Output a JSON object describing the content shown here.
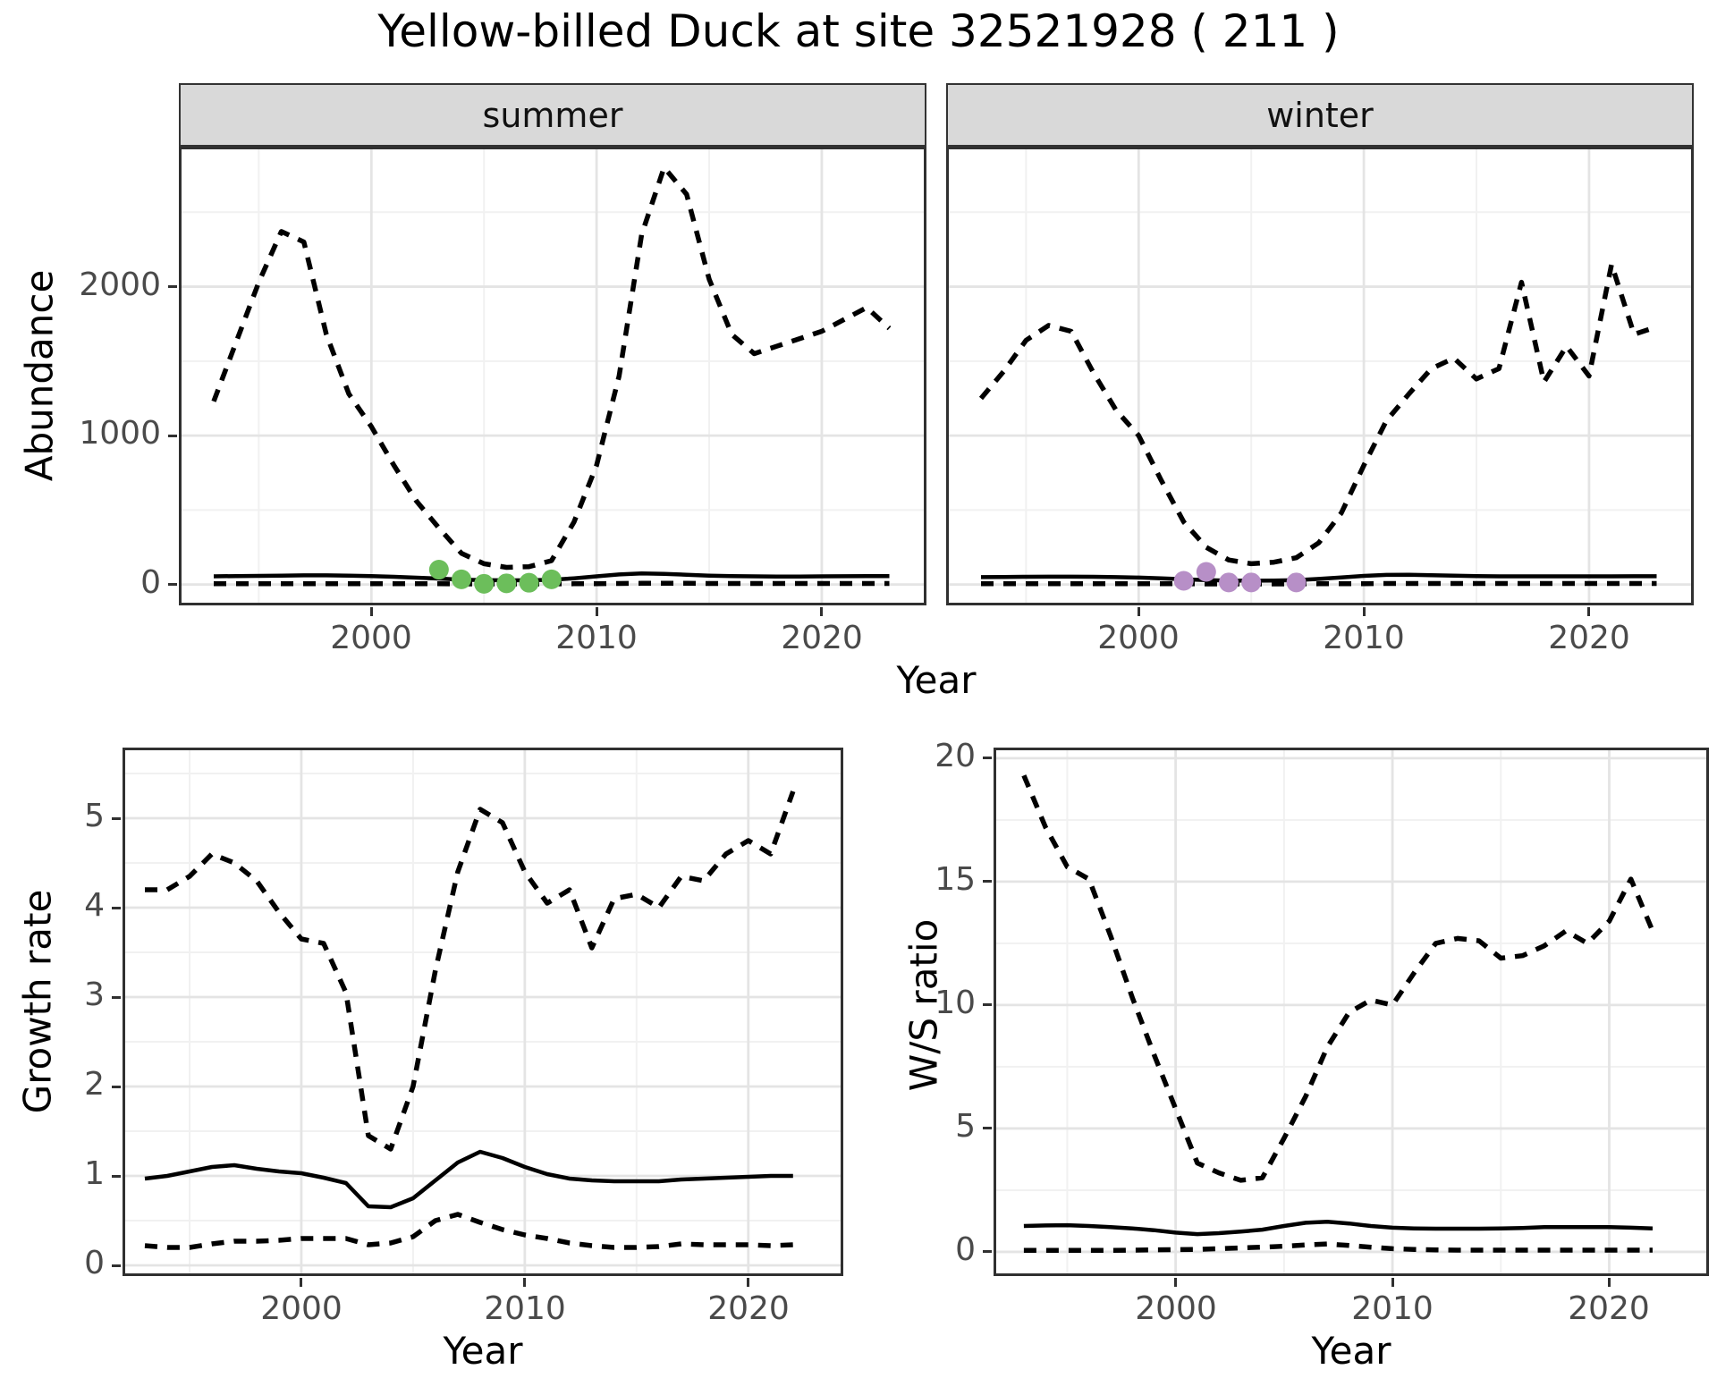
{
  "title": "Yellow-billed Duck at site 32521928 ( 211 )",
  "facets": [
    {
      "label": "summer"
    },
    {
      "label": "winter"
    }
  ],
  "top_row": {
    "ylabel": "Abundance",
    "xlabel": "Year"
  },
  "bottom_left": {
    "ylabel": "Growth rate",
    "xlabel": "Year"
  },
  "bottom_right": {
    "ylabel": "W/S ratio",
    "xlabel": "Year"
  },
  "colors": {
    "summer_points": "#6CBE5B",
    "winter_points": "#B78FC7",
    "line": "#000000",
    "grid_major": "#e4e4e4",
    "grid_minor": "#f1f1f1",
    "strip_bg": "#d9d9d9",
    "panel_border": "#303030",
    "tick_text": "#4a4a4a"
  },
  "chart_data": [
    {
      "id": "abundance-summer",
      "type": "line",
      "title": "summer",
      "xlabel": "Year",
      "ylabel": "Abundance",
      "xlim": [
        1991.45,
        2024.65
      ],
      "ylim": [
        -140,
        2940
      ],
      "xticks": [
        2000,
        2010,
        2020
      ],
      "xticks_minor": [
        1995,
        2005,
        2015,
        2025
      ],
      "yticks": [
        0,
        1000,
        2000
      ],
      "yticks_minor": [
        500,
        1500,
        2500
      ],
      "show_y_labels": true,
      "x": [
        1993,
        1994,
        1995,
        1996,
        1997,
        1998,
        1999,
        2000,
        2001,
        2002,
        2003,
        2004,
        2005,
        2006,
        2007,
        2008,
        2009,
        2010,
        2011,
        2012,
        2013,
        2014,
        2015,
        2016,
        2017,
        2018,
        2019,
        2020,
        2021,
        2022,
        2023
      ],
      "series": [
        {
          "name": "upper_ci",
          "style": "dashed",
          "values": [
            1230,
            1630,
            2030,
            2370,
            2300,
            1680,
            1280,
            1060,
            800,
            560,
            380,
            210,
            140,
            115,
            120,
            160,
            420,
            800,
            1400,
            2350,
            2800,
            2620,
            2050,
            1680,
            1550,
            1600,
            1650,
            1700,
            1780,
            1860,
            1720
          ]
        },
        {
          "name": "median",
          "style": "solid",
          "values": [
            55,
            57,
            58,
            60,
            62,
            62,
            60,
            57,
            52,
            46,
            40,
            33,
            30,
            28,
            29,
            32,
            42,
            55,
            68,
            75,
            72,
            66,
            60,
            57,
            55,
            54,
            54,
            55,
            56,
            57,
            57
          ]
        },
        {
          "name": "lower_ci",
          "style": "dashed",
          "values": [
            6,
            6,
            6,
            6,
            6,
            6,
            6,
            6,
            6,
            5,
            5,
            4,
            4,
            4,
            4,
            4,
            5,
            6,
            7,
            8,
            8,
            8,
            7,
            7,
            7,
            7,
            7,
            7,
            7,
            7,
            7
          ]
        }
      ],
      "points": {
        "name": "observed-counts-summer",
        "color": "#6CBE5B",
        "x": [
          2003,
          2004,
          2005,
          2006,
          2007,
          2008
        ],
        "y": [
          100,
          35,
          5,
          8,
          12,
          35
        ]
      }
    },
    {
      "id": "abundance-winter",
      "type": "line",
      "title": "winter",
      "xlabel": "Year",
      "ylabel": "Abundance",
      "xlim": [
        1991.45,
        2024.65
      ],
      "ylim": [
        -140,
        2940
      ],
      "xticks": [
        2000,
        2010,
        2020
      ],
      "xticks_minor": [
        1995,
        2005,
        2015,
        2025
      ],
      "yticks": [
        0,
        1000,
        2000
      ],
      "yticks_minor": [
        500,
        1500,
        2500
      ],
      "show_y_labels": false,
      "x": [
        1993,
        1994,
        1995,
        1996,
        1997,
        1998,
        1999,
        2000,
        2001,
        2002,
        2003,
        2004,
        2005,
        2006,
        2007,
        2008,
        2009,
        2010,
        2011,
        2012,
        2013,
        2014,
        2015,
        2016,
        2017,
        2018,
        2019,
        2020,
        2021,
        2022,
        2023
      ],
      "series": [
        {
          "name": "upper_ci",
          "style": "dashed",
          "values": [
            1250,
            1430,
            1640,
            1740,
            1700,
            1420,
            1170,
            1000,
            700,
            420,
            250,
            165,
            140,
            150,
            180,
            280,
            480,
            800,
            1100,
            1280,
            1450,
            1520,
            1380,
            1450,
            2030,
            1360,
            1600,
            1400,
            2150,
            1680,
            1730
          ]
        },
        {
          "name": "median",
          "style": "solid",
          "values": [
            50,
            51,
            52,
            53,
            53,
            52,
            50,
            47,
            42,
            36,
            30,
            27,
            26,
            27,
            30,
            38,
            48,
            58,
            65,
            66,
            63,
            60,
            57,
            55,
            55,
            55,
            55,
            55,
            55,
            56,
            56
          ]
        },
        {
          "name": "lower_ci",
          "style": "dashed",
          "values": [
            6,
            6,
            6,
            6,
            6,
            6,
            6,
            6,
            5,
            5,
            4,
            4,
            4,
            4,
            4,
            5,
            5,
            6,
            7,
            7,
            7,
            7,
            7,
            7,
            7,
            7,
            7,
            7,
            7,
            7,
            7
          ]
        }
      ],
      "points": {
        "name": "observed-counts-winter",
        "color": "#B78FC7",
        "x": [
          2002,
          2003,
          2004,
          2005,
          2007
        ],
        "y": [
          25,
          85,
          14,
          14,
          14
        ]
      }
    },
    {
      "id": "growth-rate",
      "type": "line",
      "title": "",
      "xlabel": "Year",
      "ylabel": "Growth rate",
      "xlim": [
        1992.0,
        2024.25
      ],
      "ylim": [
        -0.12,
        5.79
      ],
      "xticks": [
        2000,
        2010,
        2020
      ],
      "xticks_minor": [
        1995,
        2005,
        2015
      ],
      "yticks": [
        0,
        1,
        2,
        3,
        4,
        5
      ],
      "yticks_minor": [
        0.5,
        1.5,
        2.5,
        3.5,
        4.5,
        5.5
      ],
      "show_y_labels": true,
      "x": [
        1993,
        1994,
        1995,
        1996,
        1997,
        1998,
        1999,
        2000,
        2001,
        2002,
        2003,
        2004,
        2005,
        2006,
        2007,
        2008,
        2009,
        2010,
        2011,
        2012,
        2013,
        2014,
        2015,
        2016,
        2017,
        2018,
        2019,
        2020,
        2021,
        2022
      ],
      "series": [
        {
          "name": "upper_ci",
          "style": "dashed",
          "values": [
            4.2,
            4.2,
            4.35,
            4.6,
            4.5,
            4.3,
            3.95,
            3.65,
            3.6,
            3.05,
            1.45,
            1.3,
            2.0,
            3.3,
            4.4,
            5.1,
            4.95,
            4.4,
            4.05,
            4.2,
            3.55,
            4.1,
            4.15,
            4.0,
            4.35,
            4.3,
            4.6,
            4.75,
            4.6,
            5.3
          ]
        },
        {
          "name": "median",
          "style": "solid",
          "values": [
            0.97,
            1.0,
            1.05,
            1.1,
            1.12,
            1.08,
            1.05,
            1.03,
            0.98,
            0.92,
            0.66,
            0.65,
            0.75,
            0.95,
            1.15,
            1.27,
            1.2,
            1.1,
            1.02,
            0.97,
            0.95,
            0.94,
            0.94,
            0.94,
            0.96,
            0.97,
            0.98,
            0.99,
            1.0,
            1.0
          ]
        },
        {
          "name": "lower_ci",
          "style": "dashed",
          "values": [
            0.22,
            0.2,
            0.2,
            0.24,
            0.27,
            0.27,
            0.28,
            0.3,
            0.3,
            0.3,
            0.23,
            0.25,
            0.32,
            0.5,
            0.57,
            0.48,
            0.4,
            0.34,
            0.3,
            0.25,
            0.22,
            0.2,
            0.2,
            0.21,
            0.24,
            0.23,
            0.23,
            0.23,
            0.22,
            0.23
          ]
        }
      ]
    },
    {
      "id": "ws-ratio",
      "type": "line",
      "title": "",
      "xlabel": "Year",
      "ylabel": "W/S ratio",
      "xlim": [
        1991.6,
        2024.6
      ],
      "ylim": [
        -0.98,
        20.43
      ],
      "xticks": [
        2000,
        2010,
        2020
      ],
      "xticks_minor": [
        1995,
        2005,
        2015
      ],
      "yticks": [
        0,
        5,
        10,
        15,
        20
      ],
      "yticks_minor": [
        2.5,
        7.5,
        12.5,
        17.5
      ],
      "show_y_labels": true,
      "x": [
        1993,
        1994,
        1995,
        1996,
        1997,
        1998,
        1999,
        2000,
        2001,
        2002,
        2003,
        2004,
        2005,
        2006,
        2007,
        2008,
        2009,
        2010,
        2011,
        2012,
        2013,
        2014,
        2015,
        2016,
        2017,
        2018,
        2019,
        2020,
        2021,
        2022
      ],
      "series": [
        {
          "name": "upper_ci",
          "style": "dashed",
          "values": [
            19.3,
            17.2,
            15.6,
            15.1,
            12.8,
            10.3,
            8.0,
            5.8,
            3.6,
            3.2,
            2.9,
            3.0,
            4.6,
            6.3,
            8.3,
            9.7,
            10.2,
            10.0,
            11.3,
            12.5,
            12.7,
            12.6,
            11.9,
            12.0,
            12.4,
            13.0,
            12.5,
            13.4,
            15.1,
            13.0
          ]
        },
        {
          "name": "median",
          "style": "solid",
          "values": [
            1.05,
            1.07,
            1.08,
            1.05,
            1.0,
            0.95,
            0.88,
            0.78,
            0.72,
            0.76,
            0.82,
            0.9,
            1.05,
            1.18,
            1.22,
            1.15,
            1.05,
            0.98,
            0.95,
            0.94,
            0.94,
            0.94,
            0.95,
            0.97,
            1.0,
            1.0,
            1.0,
            1.0,
            0.98,
            0.95
          ]
        },
        {
          "name": "lower_ci",
          "style": "dashed",
          "values": [
            0.06,
            0.06,
            0.06,
            0.06,
            0.06,
            0.07,
            0.08,
            0.09,
            0.1,
            0.13,
            0.16,
            0.19,
            0.23,
            0.28,
            0.32,
            0.26,
            0.19,
            0.13,
            0.1,
            0.08,
            0.07,
            0.07,
            0.07,
            0.07,
            0.07,
            0.07,
            0.07,
            0.07,
            0.07,
            0.07
          ]
        }
      ]
    }
  ]
}
